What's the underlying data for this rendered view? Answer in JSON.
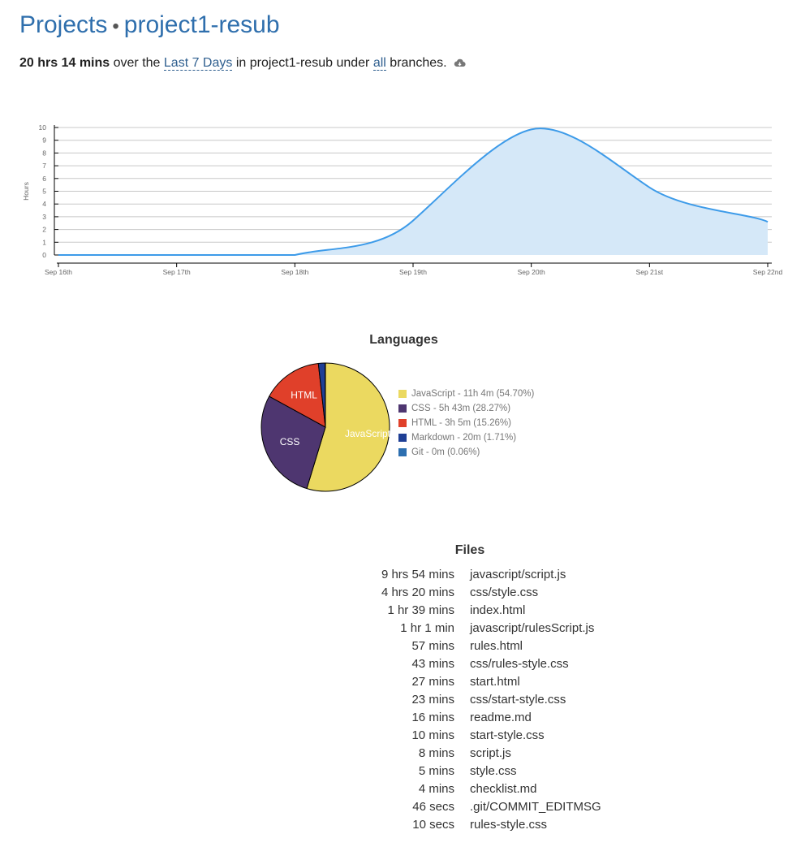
{
  "header": {
    "projects_link": "Projects",
    "separator": "•",
    "project_name": "project1-resub"
  },
  "summary": {
    "total_time": "20 hrs 14 mins",
    "text_over": "over the",
    "range_link": "Last 7 Days",
    "text_in": "in project1-resub under",
    "branches_link": "all",
    "text_end": "branches.",
    "icon": "cloud-download-icon"
  },
  "chart_data": [
    {
      "type": "area",
      "title": "",
      "xlabel": "",
      "ylabel": "Hours",
      "x": [
        "Sep 16th",
        "Sep 17th",
        "Sep 18th",
        "Sep 19th",
        "Sep 20th",
        "Sep 21st",
        "Sep 22nd"
      ],
      "values": [
        0,
        0,
        0,
        2.7,
        9.85,
        5.3,
        2.6
      ],
      "ylim": [
        0,
        10
      ],
      "yticks": [
        0,
        1,
        2,
        3,
        4,
        5,
        6,
        7,
        8,
        9,
        10
      ],
      "grid": true,
      "line_color": "#3d9be9",
      "fill_color": "#d5e8f8"
    },
    {
      "type": "pie",
      "title": "Languages",
      "slices": [
        {
          "name": "JavaScript",
          "label": "JavaScript",
          "legend": "JavaScript - 11h 4m (54.70%)",
          "value": 54.7,
          "color": "#ebd960"
        },
        {
          "name": "CSS",
          "label": "CSS",
          "legend": "CSS - 5h 43m (28.27%)",
          "value": 28.27,
          "color": "#4e3670"
        },
        {
          "name": "HTML",
          "label": "HTML",
          "legend": "HTML - 3h 5m (15.26%)",
          "value": 15.26,
          "color": "#e0402a"
        },
        {
          "name": "Markdown",
          "label": "",
          "legend": "Markdown - 20m (1.71%)",
          "value": 1.71,
          "color": "#1f3f95"
        },
        {
          "name": "Git",
          "label": "",
          "legend": "Git - 0m (0.06%)",
          "value": 0.06,
          "color": "#2d6fb0"
        }
      ],
      "legend_position": "right"
    }
  ],
  "files": {
    "title": "Files",
    "rows": [
      {
        "time": "9 hrs 54 mins",
        "name": "javascript/script.js"
      },
      {
        "time": "4 hrs 20 mins",
        "name": "css/style.css"
      },
      {
        "time": "1 hr 39 mins",
        "name": "index.html"
      },
      {
        "time": "1 hr 1 min",
        "name": "javascript/rulesScript.js"
      },
      {
        "time": "57 mins",
        "name": "rules.html"
      },
      {
        "time": "43 mins",
        "name": "css/rules-style.css"
      },
      {
        "time": "27 mins",
        "name": "start.html"
      },
      {
        "time": "23 mins",
        "name": "css/start-style.css"
      },
      {
        "time": "16 mins",
        "name": "readme.md"
      },
      {
        "time": "10 mins",
        "name": "start-style.css"
      },
      {
        "time": "8 mins",
        "name": "script.js"
      },
      {
        "time": "5 mins",
        "name": "style.css"
      },
      {
        "time": "4 mins",
        "name": "checklist.md"
      },
      {
        "time": "46 secs",
        "name": ".git/COMMIT_EDITMSG"
      },
      {
        "time": "10 secs",
        "name": "rules-style.css"
      }
    ]
  }
}
